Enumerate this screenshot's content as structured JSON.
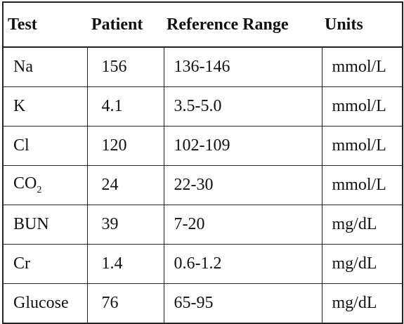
{
  "table": {
    "header": [
      "Test",
      "Patient",
      "Reference Range",
      "Units"
    ],
    "rows": [
      [
        "Na",
        "156",
        "136-146",
        "mmol/L"
      ],
      [
        "K",
        "4.1",
        "3.5-5.0",
        "mmol/L"
      ],
      [
        "Cl",
        "120",
        "102-109",
        "mmol/L"
      ],
      [
        {
          "base": "CO",
          "sub": "2"
        },
        "24",
        "22-30",
        "mmol/L"
      ],
      [
        "BUN",
        "39",
        "7-20",
        "mg/dL"
      ],
      [
        "Cr",
        "1.4",
        "0.6-1.2",
        "mg/dL"
      ],
      [
        "Glucose",
        "76",
        "65-95",
        "mg/dL"
      ]
    ]
  }
}
